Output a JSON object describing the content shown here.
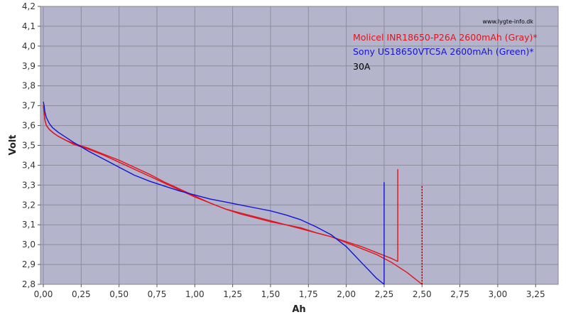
{
  "chart_data": {
    "type": "line",
    "xlabel": "Ah",
    "ylabel": "Volt",
    "xlim": [
      0,
      3.25
    ],
    "ylim": [
      2.8,
      4.2
    ],
    "x_ticks": [
      "0,00",
      "0,25",
      "0,50",
      "0,75",
      "1,00",
      "1,25",
      "1,50",
      "1,75",
      "2,00",
      "2,25",
      "2,50",
      "2,75",
      "3,00",
      "3,25"
    ],
    "y_ticks": [
      "2,8",
      "2,9",
      "3,0",
      "3,1",
      "3,2",
      "3,3",
      "3,4",
      "3,5",
      "3,6",
      "3,7",
      "3,8",
      "3,9",
      "4,0",
      "4,1",
      "4,2"
    ],
    "grid": true,
    "legend_position": "top-right",
    "watermark": "www.lygte-info.dk",
    "annotation": "30A",
    "series": [
      {
        "name": "Molicel INR18650-P26A 2600mAh (Gray)*",
        "color": "#e0141c",
        "lines": [
          {
            "x": [
              0,
              0.005,
              0.01,
              0.02,
              0.04,
              0.07,
              0.1,
              0.15,
              0.2,
              0.3,
              0.4,
              0.5,
              0.6,
              0.7,
              0.8,
              0.9,
              1.0,
              1.1,
              1.2,
              1.3,
              1.4,
              1.5,
              1.6,
              1.7,
              1.8,
              1.9,
              2.0,
              2.1,
              2.2,
              2.25,
              2.3,
              2.34
            ],
            "y": [
              3.7,
              3.67,
              3.63,
              3.6,
              3.58,
              3.56,
              3.545,
              3.525,
              3.51,
              3.485,
              3.455,
              3.425,
              3.39,
              3.355,
              3.315,
              3.28,
              3.245,
              3.21,
              3.18,
              3.155,
              3.135,
              3.115,
              3.1,
              3.085,
              3.06,
              3.04,
              3.015,
              2.99,
              2.96,
              2.945,
              2.93,
              2.915
            ]
          },
          {
            "x": [
              2.34,
              2.34
            ],
            "y": [
              2.915,
              3.38
            ]
          },
          {
            "x": [
              0,
              0.005,
              0.01,
              0.02,
              0.04,
              0.07,
              0.1,
              0.15,
              0.2,
              0.3,
              0.4,
              0.5,
              0.6,
              0.7,
              0.8,
              0.9,
              1.0,
              1.1,
              1.2,
              1.3,
              1.4,
              1.5,
              1.6,
              1.7,
              1.8,
              1.9,
              2.0,
              2.1,
              2.2,
              2.3,
              2.35,
              2.4,
              2.45,
              2.5
            ],
            "y": [
              3.7,
              3.67,
              3.63,
              3.6,
              3.58,
              3.56,
              3.545,
              3.525,
              3.505,
              3.48,
              3.45,
              3.415,
              3.38,
              3.345,
              3.31,
              3.275,
              3.24,
              3.21,
              3.18,
              3.16,
              3.14,
              3.12,
              3.1,
              3.08,
              3.06,
              3.04,
              3.01,
              2.98,
              2.95,
              2.91,
              2.885,
              2.86,
              2.83,
              2.8
            ]
          }
        ]
      },
      {
        "name": "Sony US18650VTC5A 2600mAh (Green)*",
        "color": "#1414d2",
        "lines": [
          {
            "x": [
              0,
              0.005,
              0.01,
              0.02,
              0.04,
              0.06,
              0.1,
              0.15,
              0.2,
              0.3,
              0.4,
              0.5,
              0.6,
              0.7,
              0.8,
              0.9,
              1.0,
              1.1,
              1.2,
              1.3,
              1.4,
              1.5,
              1.6,
              1.7,
              1.8,
              1.85,
              1.9,
              1.95,
              2.0,
              2.05,
              2.1,
              2.15,
              2.2,
              2.25
            ],
            "y": [
              3.72,
              3.7,
              3.67,
              3.64,
              3.61,
              3.59,
              3.565,
              3.54,
              3.515,
              3.47,
              3.43,
              3.39,
              3.35,
              3.32,
              3.295,
              3.27,
              3.25,
              3.23,
              3.215,
              3.2,
              3.185,
              3.17,
              3.15,
              3.125,
              3.09,
              3.07,
              3.05,
              3.02,
              2.99,
              2.95,
              2.91,
              2.87,
              2.83,
              2.8
            ]
          },
          {
            "x": [
              2.25,
              2.25
            ],
            "y": [
              2.8,
              3.315
            ]
          }
        ]
      },
      {
        "name": "",
        "color": "#8b0000",
        "dash": true,
        "lines": [
          {
            "x": [
              2.5,
              2.5
            ],
            "y": [
              2.8,
              3.3
            ]
          }
        ]
      }
    ]
  }
}
